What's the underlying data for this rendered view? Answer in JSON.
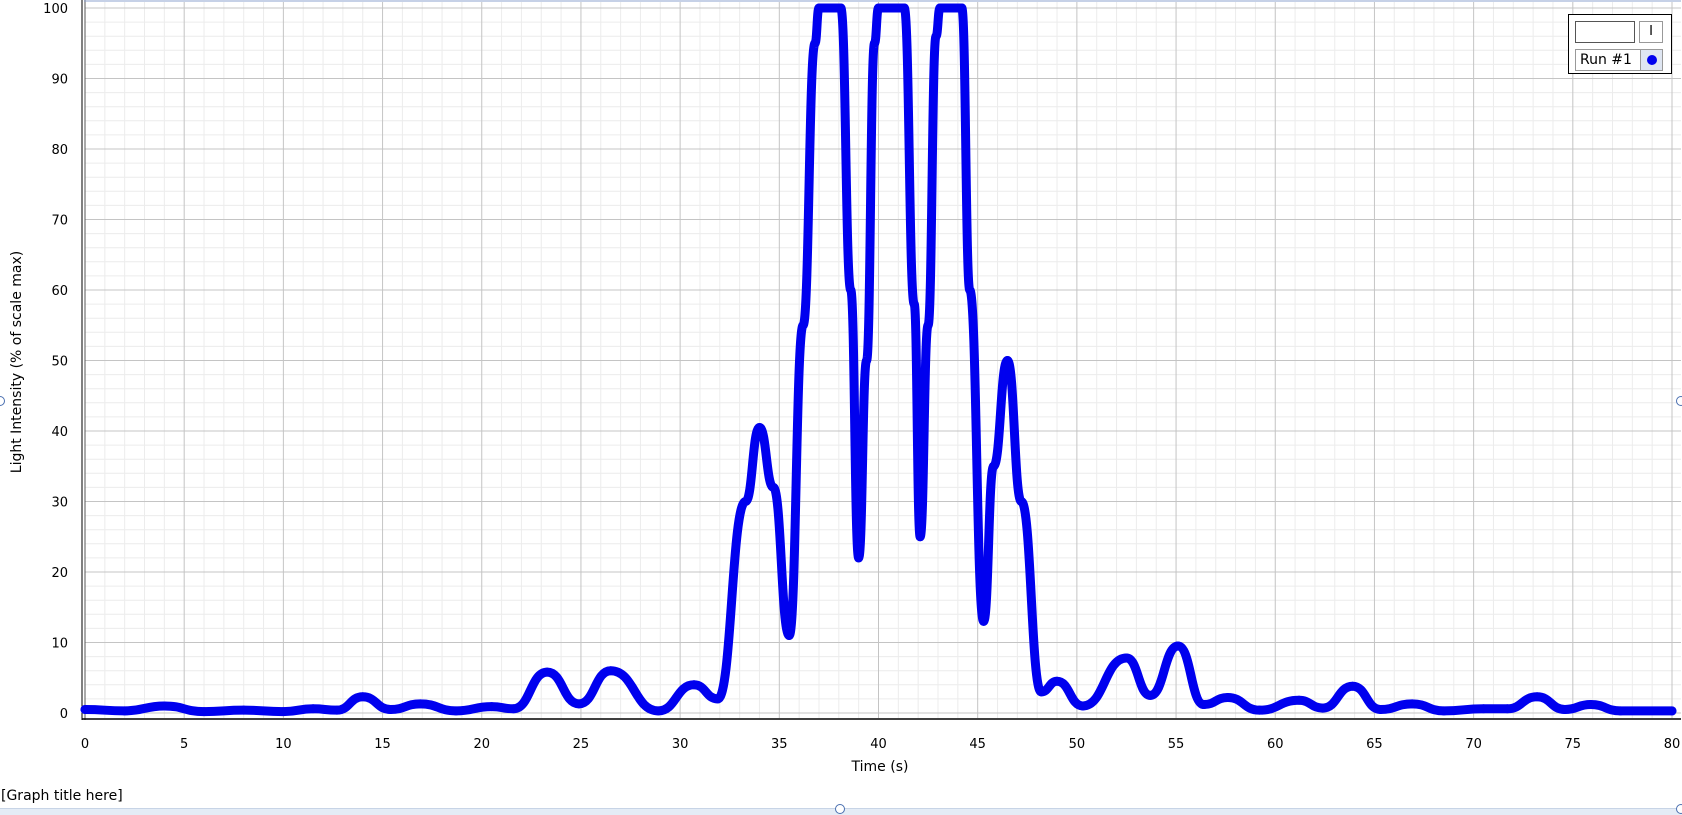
{
  "graph_title_placeholder": "[Graph title here]",
  "colors": {
    "series": "#0000ee",
    "grid_major": "#c4c4c4",
    "grid_minor": "#ececec",
    "axis": "#000000"
  },
  "legend": {
    "header": "I",
    "entries": [
      {
        "label": "Run #1"
      }
    ]
  },
  "chart_data": {
    "type": "scatter",
    "title": "",
    "xlabel": "Time (s)",
    "ylabel": "Light Intensity (% of scale max)",
    "xlim": [
      0,
      80
    ],
    "ylim": [
      0,
      100
    ],
    "x_ticks": [
      0,
      5,
      10,
      15,
      20,
      25,
      30,
      35,
      40,
      45,
      50,
      55,
      60,
      65,
      70,
      75,
      80
    ],
    "y_ticks": [
      0,
      10,
      20,
      30,
      40,
      50,
      60,
      70,
      80,
      90,
      100
    ],
    "grid": true,
    "legend_position": "top-right",
    "series": [
      {
        "name": "Run #1",
        "points": [
          [
            0.0,
            0.5
          ],
          [
            2.0,
            0.3
          ],
          [
            4.0,
            1.0
          ],
          [
            6.0,
            0.2
          ],
          [
            8.0,
            0.4
          ],
          [
            10.0,
            0.2
          ],
          [
            11.5,
            0.6
          ],
          [
            12.7,
            0.4
          ],
          [
            14.0,
            2.3
          ],
          [
            15.4,
            0.5
          ],
          [
            16.9,
            1.3
          ],
          [
            18.7,
            0.3
          ],
          [
            20.5,
            0.9
          ],
          [
            21.6,
            0.6
          ],
          [
            23.3,
            5.8
          ],
          [
            24.9,
            1.3
          ],
          [
            26.5,
            6.0
          ],
          [
            28.9,
            0.3
          ],
          [
            30.7,
            4.0
          ],
          [
            31.9,
            2.0
          ],
          [
            33.3,
            30.0
          ],
          [
            34.0,
            40.5
          ],
          [
            34.7,
            32.0
          ],
          [
            35.5,
            11.0
          ],
          [
            36.2,
            55.0
          ],
          [
            36.8,
            95.0
          ],
          [
            37.0,
            100.0
          ],
          [
            38.1,
            100.0
          ],
          [
            38.6,
            60.0
          ],
          [
            39.0,
            22.0
          ],
          [
            39.4,
            50.0
          ],
          [
            39.8,
            95.0
          ],
          [
            40.0,
            100.0
          ],
          [
            41.3,
            100.0
          ],
          [
            41.8,
            58.0
          ],
          [
            42.1,
            25.0
          ],
          [
            42.5,
            55.0
          ],
          [
            42.9,
            96.0
          ],
          [
            43.1,
            100.0
          ],
          [
            44.2,
            100.0
          ],
          [
            44.6,
            60.0
          ],
          [
            45.3,
            13.0
          ],
          [
            45.8,
            35.0
          ],
          [
            46.5,
            50.0
          ],
          [
            47.2,
            30.0
          ],
          [
            48.2,
            3.0
          ],
          [
            49.0,
            4.5
          ],
          [
            50.3,
            1.0
          ],
          [
            52.5,
            7.8
          ],
          [
            53.7,
            2.5
          ],
          [
            55.1,
            9.5
          ],
          [
            56.4,
            1.2
          ],
          [
            57.6,
            2.2
          ],
          [
            59.2,
            0.4
          ],
          [
            61.2,
            1.8
          ],
          [
            62.4,
            0.7
          ],
          [
            63.9,
            3.8
          ],
          [
            65.3,
            0.5
          ],
          [
            66.9,
            1.3
          ],
          [
            68.5,
            0.3
          ],
          [
            70.5,
            0.6
          ],
          [
            71.7,
            0.6
          ],
          [
            73.2,
            2.3
          ],
          [
            74.6,
            0.5
          ],
          [
            75.9,
            1.2
          ],
          [
            77.4,
            0.3
          ],
          [
            80.0,
            0.3
          ]
        ]
      }
    ]
  }
}
